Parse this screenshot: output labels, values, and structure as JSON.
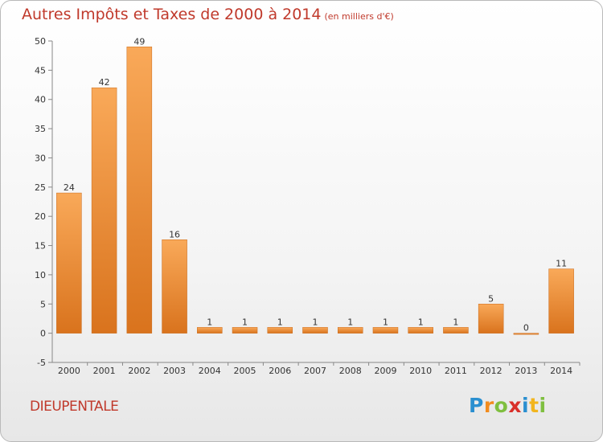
{
  "title": "Autres Impôts et Taxes de 2000 à 2014",
  "subtitle": "(en milliers d'€)",
  "location": "DIEUPENTALE",
  "logo": {
    "letters": [
      "P",
      "r",
      "o",
      "x",
      "i",
      "t",
      "i"
    ],
    "colors": [
      "#2a8fd0",
      "#f28c1e",
      "#7fbf3f",
      "#d9302a",
      "#2a8fd0",
      "#f2b51e",
      "#7fbf3f"
    ]
  },
  "colors": {
    "bar_light": "#f9a959",
    "bar_dark": "#d9731d",
    "title": "#c0392b"
  },
  "chart_data": {
    "type": "bar",
    "categories": [
      "2000",
      "2001",
      "2002",
      "2003",
      "2004",
      "2005",
      "2006",
      "2007",
      "2008",
      "2009",
      "2010",
      "2011",
      "2012",
      "2013",
      "2014"
    ],
    "values": [
      24,
      42,
      49,
      16,
      1,
      1,
      1,
      1,
      1,
      1,
      1,
      1,
      5,
      0,
      11
    ],
    "data_labels": [
      "24",
      "42",
      "49",
      "16",
      "1",
      "1",
      "1",
      "1",
      "1",
      "1",
      "1",
      "1",
      "5",
      "0",
      "11"
    ],
    "ylim": [
      -5,
      50
    ],
    "yticks": [
      "-5",
      "0",
      "5",
      "10",
      "15",
      "20",
      "25",
      "30",
      "35",
      "40",
      "45",
      "50"
    ],
    "ytick_values": [
      -5,
      0,
      5,
      10,
      15,
      20,
      25,
      30,
      35,
      40,
      45,
      50
    ],
    "title": "Autres Impôts et Taxes de 2000 à 2014",
    "xlabel": "",
    "ylabel": "",
    "grid": false
  }
}
